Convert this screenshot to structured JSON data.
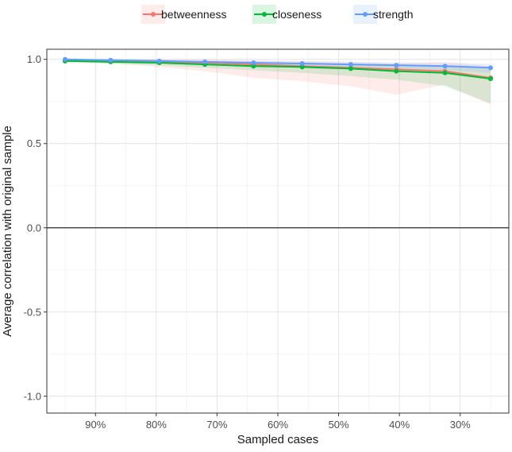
{
  "chart_data": {
    "type": "line",
    "title": "",
    "xlabel": "Sampled cases",
    "ylabel": "Average correlation with original sample",
    "x": [
      95,
      87.5,
      79.5,
      72,
      64,
      56,
      48,
      40.5,
      32.5,
      25
    ],
    "x_ticks": [
      90,
      80,
      70,
      60,
      50,
      40,
      30
    ],
    "x_tick_labels": [
      "90%",
      "80%",
      "70%",
      "60%",
      "50%",
      "40%",
      "30%"
    ],
    "x_reversed": true,
    "xlim": [
      98,
      22
    ],
    "y_ticks": [
      1.0,
      0.5,
      0.0,
      -0.5,
      -1.0
    ],
    "y_tick_labels": [
      "1.0",
      "0.5",
      "0.0",
      "-0.5",
      "-1.0"
    ],
    "ylim": [
      -1.1,
      1.06
    ],
    "grid": true,
    "reference_line": 0,
    "legend_position": "top",
    "series": [
      {
        "name": "betweenness",
        "color": "#F8766D",
        "values": [
          0.99,
          0.99,
          0.985,
          0.98,
          0.97,
          0.96,
          0.95,
          0.94,
          0.93,
          0.89
        ],
        "lower": [
          0.98,
          0.975,
          0.955,
          0.93,
          0.89,
          0.87,
          0.84,
          0.79,
          0.85,
          0.73
        ],
        "upper": [
          1.0,
          1.0,
          1.0,
          1.0,
          0.995,
          0.99,
          0.985,
          0.98,
          0.985,
          0.96
        ]
      },
      {
        "name": "closeness",
        "color": "#00BA38",
        "values": [
          0.99,
          0.985,
          0.98,
          0.97,
          0.96,
          0.955,
          0.945,
          0.93,
          0.92,
          0.885
        ],
        "lower": [
          0.985,
          0.975,
          0.965,
          0.95,
          0.935,
          0.92,
          0.9,
          0.88,
          0.84,
          0.74
        ],
        "upper": [
          1.0,
          0.995,
          0.99,
          0.985,
          0.98,
          0.975,
          0.97,
          0.96,
          0.955,
          0.95
        ]
      },
      {
        "name": "strength",
        "color": "#619CFF",
        "values": [
          1.0,
          0.995,
          0.99,
          0.985,
          0.98,
          0.975,
          0.97,
          0.965,
          0.96,
          0.95
        ],
        "lower": [
          0.995,
          0.99,
          0.985,
          0.975,
          0.97,
          0.96,
          0.955,
          0.945,
          0.935,
          0.92
        ],
        "upper": [
          1.0,
          1.0,
          0.998,
          0.995,
          0.99,
          0.988,
          0.985,
          0.98,
          0.978,
          0.975
        ]
      }
    ]
  }
}
